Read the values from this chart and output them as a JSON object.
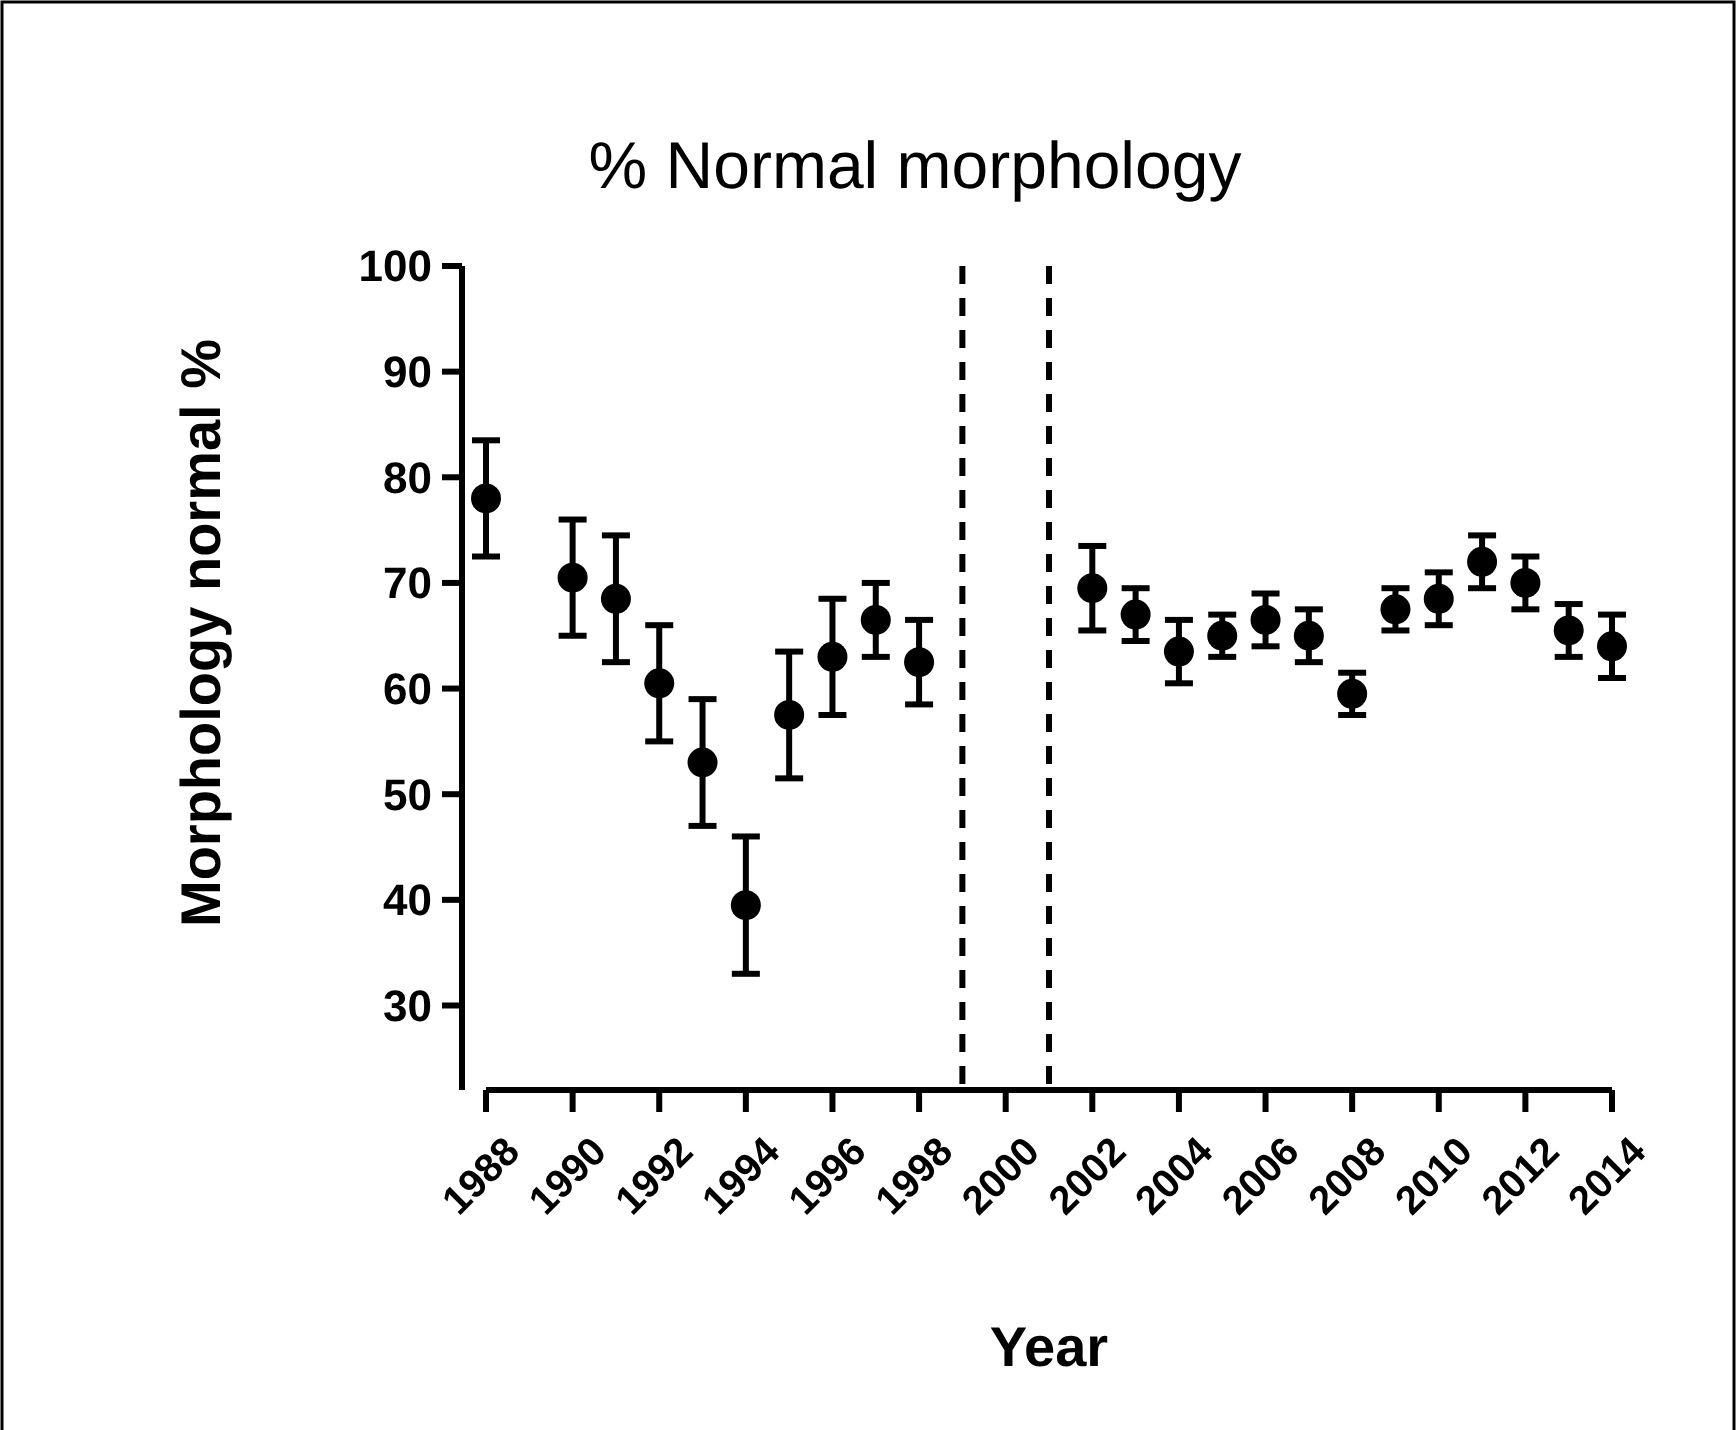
{
  "chart_data": {
    "type": "scatter",
    "title": "% Normal morphology",
    "xlabel": "Year",
    "ylabel": "Morphology normal %",
    "x": [
      1988,
      1990,
      1991,
      1992,
      1993,
      1994,
      1995,
      1996,
      1997,
      1998,
      2002,
      2003,
      2004,
      2005,
      2006,
      2007,
      2008,
      2009,
      2010,
      2011,
      2012,
      2013,
      2014
    ],
    "values": [
      78,
      70.5,
      68.5,
      60.5,
      53,
      39.5,
      57.5,
      63,
      66.5,
      62.5,
      69.5,
      67,
      63.5,
      65,
      66.5,
      65,
      59.5,
      67.5,
      68.5,
      72,
      70,
      65.5,
      64
    ],
    "errors": [
      5.5,
      5.5,
      6,
      5.5,
      6,
      6.5,
      6,
      5.5,
      3.5,
      4,
      4,
      2.5,
      3,
      2,
      2.5,
      2.5,
      2,
      2,
      2.5,
      2.5,
      2.5,
      2.5,
      3
    ],
    "color": "#000000",
    "marker": "circle",
    "xlim": [
      1988,
      2014
    ],
    "xticks": [
      1988,
      1990,
      1992,
      1994,
      1996,
      1998,
      2000,
      2002,
      2004,
      2006,
      2008,
      2010,
      2012,
      2014
    ],
    "ylim": [
      22,
      100
    ],
    "yticks": [
      30,
      40,
      50,
      60,
      70,
      80,
      90,
      100
    ],
    "ref_lines": [
      {
        "axis": "x",
        "value": 1999,
        "line_style": "dashed"
      },
      {
        "axis": "x",
        "value": 2001,
        "line_style": "dashed"
      }
    ],
    "tick_labels": "xy"
  }
}
